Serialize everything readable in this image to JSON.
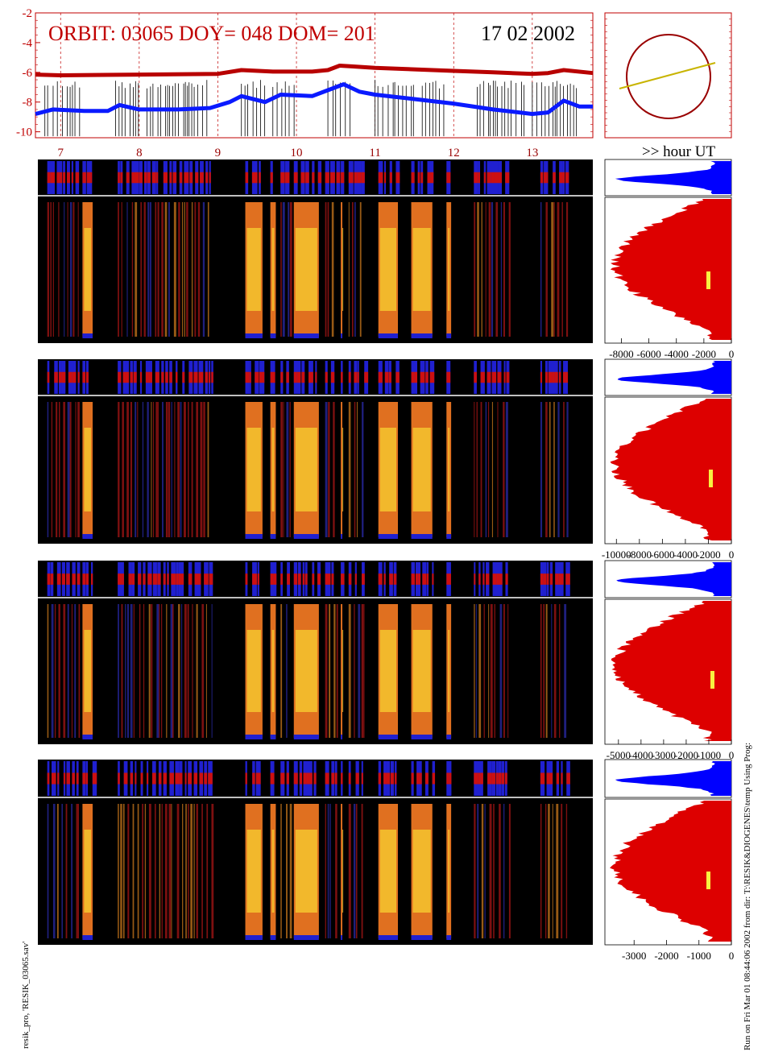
{
  "header": {
    "title": "ORBIT: 03065 DOY=  048 DOM=  201",
    "date": "17 02 2002",
    "hour_label": ">> hour UT"
  },
  "footer": {
    "left": "resik_pro, 'RESIK_03065.sav'",
    "right": "Run on Fri Mar 01 08:44:06 2002  from dir: T:\\RESIK&DIOGENES\\temp Using Prog:"
  },
  "colors": {
    "title": "#c00000",
    "red_trace": "#b80000",
    "blue_trace": "#0a1aff",
    "histogram_red": "#dd0000",
    "histogram_blue": "#0000ff",
    "orbit_circle": "#990000",
    "orbit_line": "#c8b400"
  },
  "chart_data": [
    {
      "type": "line",
      "title": "ORBIT: 03065 DOY=  048 DOM=  201",
      "ylim": [
        -10.4,
        -2
      ],
      "yticks": [
        "-2",
        "-4",
        "-6",
        "-8",
        "-10"
      ],
      "xlim": [
        6.68,
        13.77
      ],
      "xticks": [
        "7",
        "8",
        "9",
        "10",
        "11",
        "12",
        "13"
      ],
      "xlabel": ">> hour UT",
      "series": [
        {
          "color": "#b80000",
          "x": [
            6.68,
            7.0,
            8.0,
            9.0,
            9.3,
            9.7,
            10.2,
            10.4,
            10.55,
            10.7,
            11.0,
            11.5,
            12.0,
            12.5,
            13.0,
            13.2,
            13.4,
            13.77
          ],
          "y": [
            -6.15,
            -6.2,
            -6.15,
            -6.1,
            -5.85,
            -5.95,
            -5.95,
            -5.85,
            -5.55,
            -5.6,
            -5.7,
            -5.8,
            -5.9,
            -6.0,
            -6.1,
            -6.05,
            -5.85,
            -6.05
          ]
        },
        {
          "color": "#0a1aff",
          "x": [
            6.68,
            6.9,
            7.3,
            7.6,
            7.75,
            8.0,
            8.5,
            8.9,
            9.15,
            9.3,
            9.6,
            9.8,
            10.2,
            10.45,
            10.6,
            10.8,
            11.0,
            11.5,
            12.0,
            12.5,
            13.0,
            13.2,
            13.4,
            13.6,
            13.77
          ],
          "y": [
            -8.8,
            -8.5,
            -8.6,
            -8.6,
            -8.2,
            -8.5,
            -8.5,
            -8.4,
            -8.0,
            -7.6,
            -8.0,
            -7.5,
            -7.6,
            -7.1,
            -6.8,
            -7.3,
            -7.5,
            -7.8,
            -8.1,
            -8.5,
            -8.8,
            -8.7,
            -7.9,
            -8.3,
            -8.3
          ]
        }
      ]
    },
    {
      "type": "area",
      "xticks": [
        "-8000",
        "-6000",
        "-4000",
        "-2000",
        "0"
      ],
      "xlim": [
        -9200,
        0
      ]
    },
    {
      "type": "area",
      "xticks": [
        "-10000",
        "-8000",
        "-6000",
        "-4000",
        "-2000",
        "0"
      ],
      "xlim": [
        -11000,
        0
      ]
    },
    {
      "type": "area",
      "xticks": [
        "-5000",
        "-4000",
        "-3000",
        "-2000",
        "-1000",
        "0"
      ],
      "xlim": [
        -5600,
        0
      ]
    },
    {
      "type": "area",
      "xticks": [
        "-3000",
        "-2000",
        "-1000",
        "0"
      ],
      "xlim": [
        -3900,
        0
      ]
    }
  ]
}
